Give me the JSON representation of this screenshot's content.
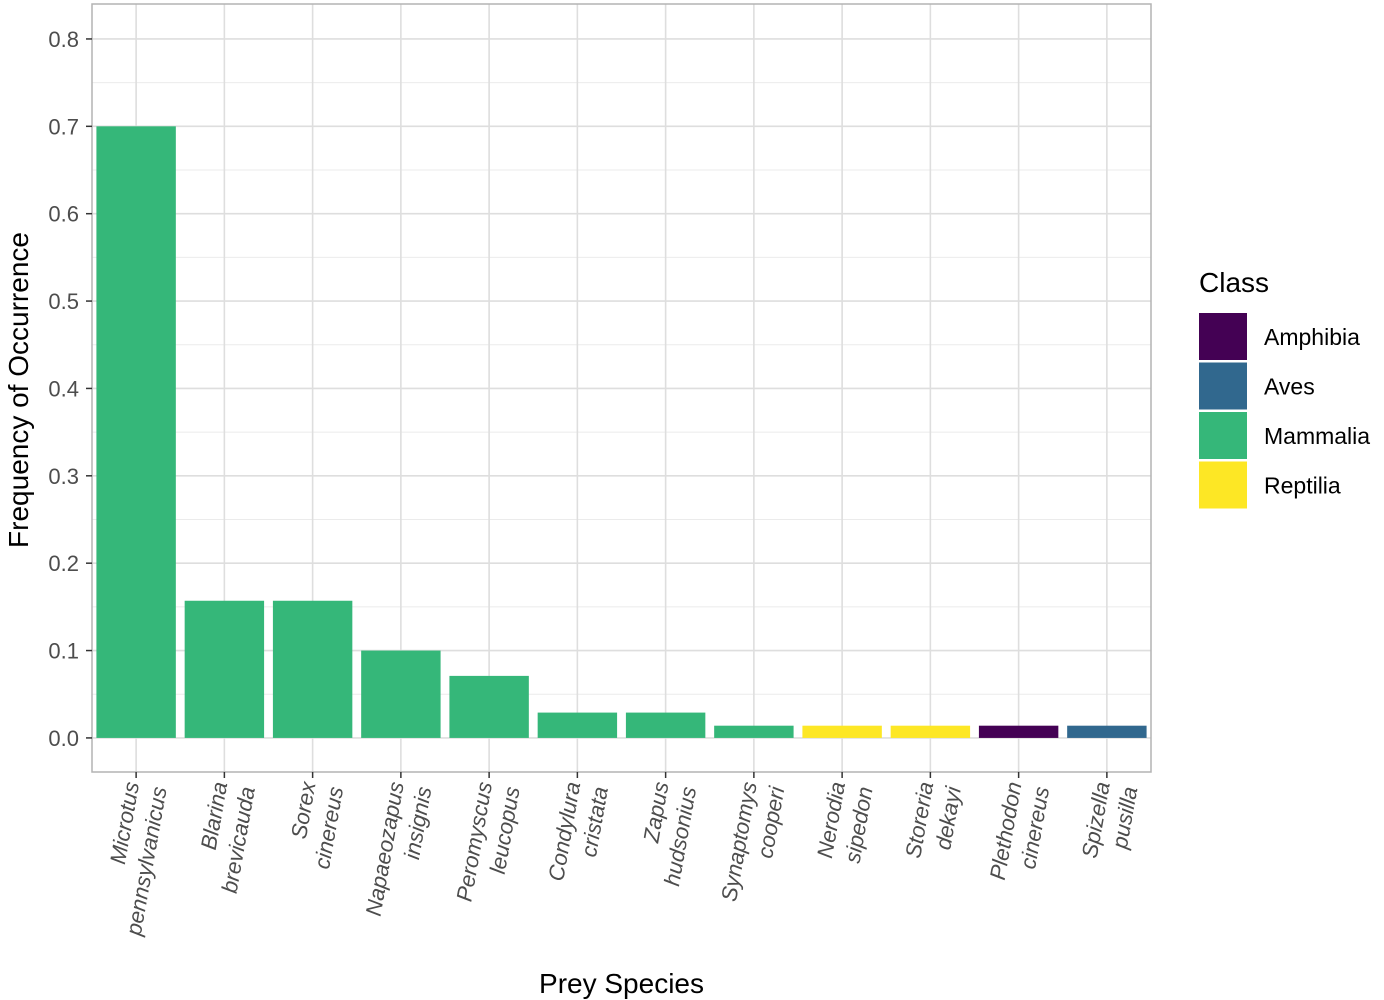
{
  "chart_data": {
    "type": "bar",
    "xlabel": "Prey Species",
    "ylabel": "Frequency of Occurrence",
    "ylim": [
      -0.039,
      0.84
    ],
    "yticks": [
      0.0,
      0.1,
      0.2,
      0.3,
      0.4,
      0.5,
      0.6,
      0.7,
      0.8
    ],
    "ytick_labels": [
      "0.0",
      "0.1",
      "0.2",
      "0.3",
      "0.4",
      "0.5",
      "0.6",
      "0.7",
      "0.8"
    ],
    "grid": true,
    "categories": [
      {
        "line1": "Microtus",
        "line2": "pennsylvanicus"
      },
      {
        "line1": "Blarina",
        "line2": "brevicauda"
      },
      {
        "line1": "Sorex",
        "line2": "cinereus"
      },
      {
        "line1": "Napaeozapus",
        "line2": "insignis"
      },
      {
        "line1": "Peromyscus",
        "line2": "leucopus"
      },
      {
        "line1": "Condylura",
        "line2": "cristata"
      },
      {
        "line1": "Zapus",
        "line2": "hudsonius"
      },
      {
        "line1": "Synaptomys",
        "line2": "cooperi"
      },
      {
        "line1": "Nerodia",
        "line2": "sipedon"
      },
      {
        "line1": "Storeria",
        "line2": "dekayi"
      },
      {
        "line1": "Plethodon",
        "line2": "cinereus"
      },
      {
        "line1": "Spizella",
        "line2": "pusilla"
      }
    ],
    "values": [
      0.7,
      0.157,
      0.157,
      0.1,
      0.071,
      0.029,
      0.029,
      0.014,
      0.014,
      0.014,
      0.014,
      0.014
    ],
    "bar_class": [
      "Mammalia",
      "Mammalia",
      "Mammalia",
      "Mammalia",
      "Mammalia",
      "Mammalia",
      "Mammalia",
      "Mammalia",
      "Reptilia",
      "Reptilia",
      "Amphibia",
      "Aves"
    ],
    "legend": {
      "title": "Class",
      "position": "right",
      "items": [
        {
          "label": "Amphibia",
          "color": "#440154"
        },
        {
          "label": "Aves",
          "color": "#31688e"
        },
        {
          "label": "Mammalia",
          "color": "#35b779"
        },
        {
          "label": "Reptilia",
          "color": "#fde725"
        }
      ]
    }
  }
}
